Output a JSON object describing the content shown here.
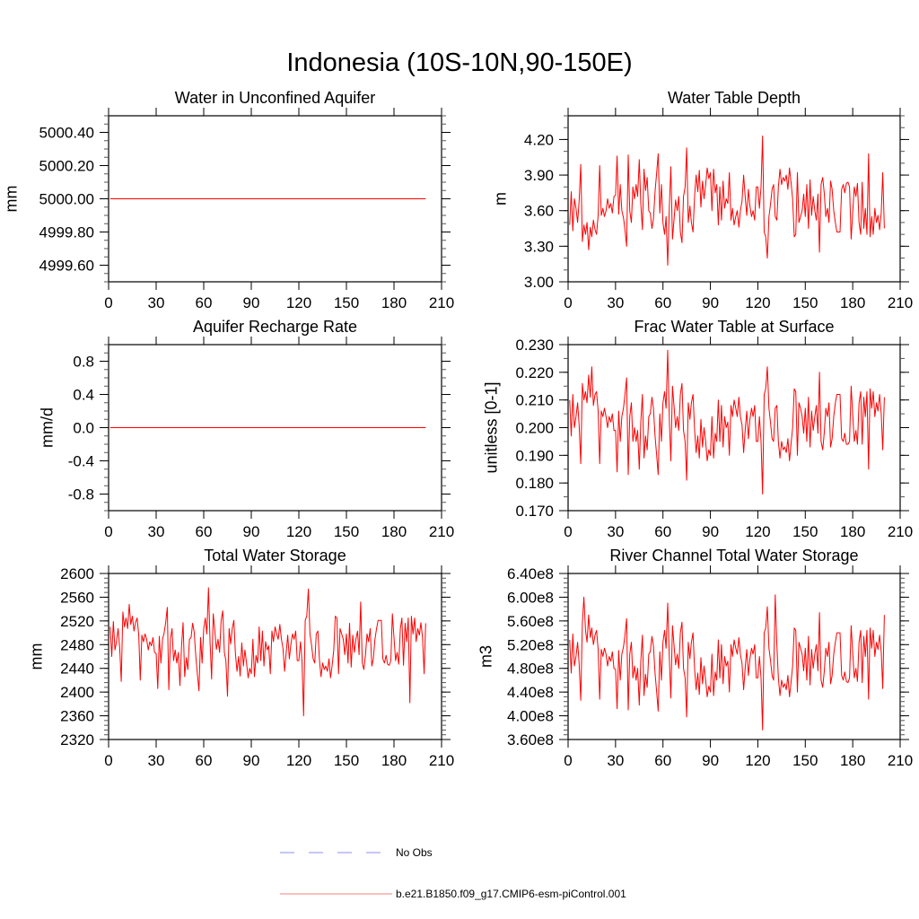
{
  "title": "Indonesia (10S-10N,90-150E)",
  "colors": {
    "series": "#ff0000",
    "frame": "#000000",
    "legend_obs": "#8c8cf0",
    "legend_model": "#f08080"
  },
  "legend": {
    "items": [
      {
        "label": "No Obs",
        "style": "dashed"
      },
      {
        "label": "b.e21.B1850.f09_g17.CMIP6-esm-piControl.001",
        "style": "solid"
      }
    ]
  },
  "chart_data": [
    {
      "type": "line",
      "title": "Water in Unconfined Aquifer",
      "xlabel": "",
      "ylabel": "mm",
      "xlim": [
        0,
        210
      ],
      "xticks": [
        0,
        30,
        60,
        90,
        120,
        150,
        180,
        210
      ],
      "ylim": [
        4999.5,
        5000.5
      ],
      "yticks": [
        4999.6,
        4999.8,
        5000.0,
        5000.2,
        5000.4
      ],
      "ytick_decimals": 2,
      "yminor_step": 0.05,
      "x": [
        1,
        200
      ],
      "values": [
        5000,
        5000
      ],
      "scale": 1
    },
    {
      "type": "line",
      "title": "Water Table Depth",
      "xlabel": "",
      "ylabel": "m",
      "xlim": [
        0,
        210
      ],
      "xticks": [
        0,
        30,
        60,
        90,
        120,
        150,
        180,
        210
      ],
      "ylim": [
        3.0,
        4.4
      ],
      "yticks": [
        3.0,
        3.3,
        3.6,
        3.9,
        4.2
      ],
      "ytick_decimals": 2,
      "yminor_step": 0.1,
      "x_start": 1,
      "scale": 1,
      "values": [
        3.48,
        3.76,
        3.43,
        3.7,
        3.62,
        3.5,
        3.68,
        3.99,
        3.34,
        3.48,
        3.4,
        3.5,
        3.27,
        3.46,
        3.38,
        3.52,
        3.44,
        3.4,
        3.56,
        3.98,
        3.56,
        3.62,
        3.55,
        3.6,
        3.7,
        3.62,
        3.66,
        3.58,
        3.72,
        3.73,
        4.06,
        3.57,
        3.82,
        3.6,
        3.54,
        3.44,
        3.3,
        4.07,
        3.6,
        3.5,
        3.8,
        3.7,
        3.82,
        3.72,
        4.03,
        3.66,
        3.44,
        3.95,
        3.77,
        3.88,
        3.6,
        3.58,
        3.45,
        3.53,
        3.76,
        3.92,
        4.08,
        3.58,
        3.82,
        3.5,
        3.4,
        3.55,
        3.14,
        3.63,
        3.97,
        3.36,
        3.52,
        3.69,
        3.6,
        3.72,
        3.42,
        3.33,
        3.72,
        3.8,
        4.13,
        3.5,
        3.64,
        3.5,
        3.42,
        3.73,
        3.9,
        3.76,
        3.94,
        3.63,
        3.85,
        3.7,
        3.82,
        3.96,
        3.87,
        3.92,
        3.6,
        3.95,
        3.75,
        3.82,
        3.48,
        3.8,
        3.52,
        3.85,
        3.62,
        3.7,
        3.66,
        3.92,
        3.52,
        3.62,
        3.48,
        3.55,
        3.6,
        3.46,
        3.6,
        3.68,
        3.9,
        3.72,
        3.56,
        3.78,
        3.64,
        3.55,
        3.6,
        3.52,
        3.8,
        3.8,
        3.62,
        3.8,
        4.23,
        3.42,
        3.38,
        3.2,
        3.55,
        3.65,
        3.78,
        3.82,
        3.55,
        3.52,
        3.8,
        3.95,
        3.82,
        3.88,
        3.85,
        3.9,
        3.78,
        3.96,
        3.84,
        3.7,
        3.38,
        3.4,
        3.92,
        3.5,
        3.55,
        3.6,
        3.74,
        3.55,
        3.82,
        3.45,
        3.86,
        3.56,
        3.72,
        3.6,
        3.52,
        3.74,
        3.25,
        3.82,
        3.88,
        3.75,
        3.55,
        3.62,
        3.5,
        3.85,
        3.78,
        3.6,
        3.5,
        3.42,
        3.42,
        3.42,
        3.78,
        3.82,
        3.75,
        3.83,
        3.84,
        3.8,
        3.36,
        3.58,
        3.8,
        3.72,
        3.83,
        3.5,
        3.4,
        3.84,
        3.45,
        3.62,
        3.4,
        4.08,
        3.38,
        3.55,
        3.4,
        3.62,
        3.5,
        3.56,
        3.44,
        3.58,
        3.92,
        3.45
      ]
    },
    {
      "type": "line",
      "title": "Aquifer Recharge Rate",
      "xlabel": "",
      "ylabel": "mm/d",
      "xlim": [
        0,
        210
      ],
      "xticks": [
        0,
        30,
        60,
        90,
        120,
        150,
        180,
        210
      ],
      "ylim": [
        -1.0,
        1.0
      ],
      "yticks": [
        -0.8,
        -0.4,
        0.0,
        0.4,
        0.8
      ],
      "ytick_decimals": 1,
      "yminor_step": 0.1,
      "x": [
        1,
        200
      ],
      "values": [
        0,
        0
      ],
      "scale": 1
    },
    {
      "type": "line",
      "title": "Frac Water Table at Surface",
      "xlabel": "",
      "ylabel": "unitless [0-1]",
      "xlim": [
        0,
        210
      ],
      "xticks": [
        0,
        30,
        60,
        90,
        120,
        150,
        180,
        210
      ],
      "ylim": [
        0.17,
        0.23
      ],
      "yticks": [
        0.17,
        0.18,
        0.19,
        0.2,
        0.21,
        0.22,
        0.23
      ],
      "ytick_decimals": 3,
      "yminor_step": 0.005,
      "x_start": 1,
      "scale": 1,
      "values": [
        0.21,
        0.197,
        0.212,
        0.2,
        0.204,
        0.209,
        0.201,
        0.187,
        0.216,
        0.21,
        0.213,
        0.209,
        0.219,
        0.211,
        0.222,
        0.208,
        0.212,
        0.213,
        0.206,
        0.187,
        0.206,
        0.204,
        0.207,
        0.204,
        0.2,
        0.204,
        0.202,
        0.205,
        0.199,
        0.199,
        0.184,
        0.206,
        0.195,
        0.204,
        0.207,
        0.212,
        0.218,
        0.183,
        0.204,
        0.209,
        0.195,
        0.2,
        0.195,
        0.199,
        0.185,
        0.202,
        0.212,
        0.189,
        0.197,
        0.192,
        0.204,
        0.205,
        0.211,
        0.207,
        0.197,
        0.19,
        0.183,
        0.205,
        0.195,
        0.209,
        0.213,
        0.207,
        0.228,
        0.203,
        0.188,
        0.215,
        0.208,
        0.2,
        0.204,
        0.199,
        0.212,
        0.216,
        0.199,
        0.195,
        0.181,
        0.209,
        0.203,
        0.209,
        0.212,
        0.199,
        0.191,
        0.197,
        0.189,
        0.203,
        0.193,
        0.2,
        0.195,
        0.188,
        0.192,
        0.19,
        0.204,
        0.189,
        0.198,
        0.195,
        0.21,
        0.195,
        0.208,
        0.193,
        0.204,
        0.2,
        0.202,
        0.19,
        0.208,
        0.204,
        0.21,
        0.207,
        0.204,
        0.211,
        0.204,
        0.201,
        0.191,
        0.199,
        0.206,
        0.196,
        0.203,
        0.207,
        0.204,
        0.208,
        0.195,
        0.195,
        0.204,
        0.195,
        0.176,
        0.212,
        0.214,
        0.222,
        0.207,
        0.202,
        0.196,
        0.195,
        0.207,
        0.208,
        0.195,
        0.189,
        0.195,
        0.192,
        0.193,
        0.191,
        0.196,
        0.188,
        0.194,
        0.2,
        0.214,
        0.213,
        0.19,
        0.209,
        0.207,
        0.204,
        0.198,
        0.207,
        0.195,
        0.211,
        0.193,
        0.206,
        0.199,
        0.204,
        0.208,
        0.198,
        0.22,
        0.195,
        0.192,
        0.198,
        0.207,
        0.204,
        0.209,
        0.193,
        0.196,
        0.204,
        0.209,
        0.212,
        0.212,
        0.212,
        0.196,
        0.195,
        0.198,
        0.194,
        0.194,
        0.195,
        0.215,
        0.205,
        0.195,
        0.199,
        0.194,
        0.209,
        0.213,
        0.194,
        0.211,
        0.204,
        0.213,
        0.185,
        0.214,
        0.207,
        0.213,
        0.204,
        0.209,
        0.206,
        0.212,
        0.205,
        0.192,
        0.211
      ]
    },
    {
      "type": "line",
      "title": "Total Water Storage",
      "xlabel": "",
      "ylabel": "mm",
      "xlim": [
        0,
        210
      ],
      "xticks": [
        0,
        30,
        60,
        90,
        120,
        150,
        180,
        210
      ],
      "ylim": [
        2320,
        2600
      ],
      "yticks": [
        2320,
        2360,
        2400,
        2440,
        2480,
        2520,
        2560,
        2600
      ],
      "ytick_decimals": 0,
      "yminor_step": 8,
      "x_start": 1,
      "scale": 1,
      "values": [
        2510,
        2460,
        2519,
        2471,
        2485,
        2507,
        2474,
        2418,
        2535,
        2510,
        2525,
        2507,
        2548,
        2514,
        2528,
        2503,
        2517,
        2525,
        2496,
        2420,
        2496,
        2485,
        2498,
        2489,
        2471,
        2485,
        2478,
        2492,
        2467,
        2465,
        2406,
        2494,
        2449,
        2489,
        2499,
        2517,
        2543,
        2404,
        2489,
        2507,
        2453,
        2471,
        2449,
        2467,
        2411,
        2478,
        2517,
        2426,
        2458,
        2438,
        2489,
        2492,
        2516,
        2501,
        2460,
        2431,
        2402,
        2492,
        2449,
        2507,
        2525,
        2498,
        2576,
        2483,
        2422,
        2532,
        2503,
        2472,
        2489,
        2467,
        2521,
        2537,
        2467,
        2453,
        2393,
        2507,
        2481,
        2507,
        2521,
        2465,
        2435,
        2460,
        2427,
        2483,
        2444,
        2471,
        2449,
        2424,
        2440,
        2431,
        2489,
        2426,
        2462,
        2449,
        2510,
        2453,
        2503,
        2444,
        2485,
        2471,
        2478,
        2431,
        2503,
        2485,
        2510,
        2498,
        2489,
        2514,
        2489,
        2474,
        2435,
        2467,
        2496,
        2456,
        2481,
        2498,
        2489,
        2503,
        2453,
        2453,
        2485,
        2453,
        2360,
        2521,
        2528,
        2574,
        2498,
        2480,
        2456,
        2449,
        2498,
        2503,
        2453,
        2426,
        2449,
        2438,
        2444,
        2435,
        2456,
        2424,
        2445,
        2471,
        2528,
        2525,
        2431,
        2507,
        2498,
        2489,
        2463,
        2498,
        2449,
        2516,
        2442,
        2496,
        2467,
        2489,
        2503,
        2463,
        2552,
        2449,
        2438,
        2462,
        2498,
        2485,
        2507,
        2444,
        2456,
        2489,
        2507,
        2521,
        2521,
        2521,
        2456,
        2449,
        2462,
        2447,
        2445,
        2453,
        2532,
        2492,
        2453,
        2467,
        2447,
        2507,
        2525,
        2445,
        2516,
        2485,
        2525,
        2382,
        2528,
        2498,
        2525,
        2485,
        2507,
        2496,
        2517,
        2492,
        2431,
        2516
      ]
    },
    {
      "type": "line",
      "title": "River Channel Total Water Storage",
      "xlabel": "",
      "ylabel": "m3",
      "xlim": [
        0,
        210
      ],
      "xticks": [
        0,
        30,
        60,
        90,
        120,
        150,
        180,
        210
      ],
      "ylim": [
        360000000.0,
        640000000.0
      ],
      "yticks": [
        360000000.0,
        400000000.0,
        440000000.0,
        480000000.0,
        520000000.0,
        560000000.0,
        600000000.0,
        640000000.0
      ],
      "ytick_format": "e8",
      "yminor_step": 8000000.0,
      "x_start": 1,
      "scale": 100000000.0,
      "values": [
        5.28,
        4.72,
        5.38,
        4.84,
        5.0,
        5.24,
        4.88,
        4.26,
        5.56,
        6.0,
        5.44,
        5.24,
        5.7,
        5.32,
        5.48,
        5.2,
        5.36,
        5.44,
        5.12,
        4.28,
        5.12,
        5.0,
        5.14,
        5.04,
        4.84,
        5.0,
        4.92,
        5.08,
        4.8,
        4.78,
        4.12,
        5.1,
        4.6,
        5.04,
        5.16,
        5.36,
        5.64,
        4.1,
        5.04,
        5.24,
        4.64,
        4.84,
        4.6,
        4.8,
        4.18,
        4.92,
        5.36,
        4.34,
        4.7,
        4.48,
        5.04,
        5.08,
        5.34,
        5.18,
        4.72,
        4.4,
        4.08,
        5.08,
        4.6,
        5.24,
        5.44,
        5.14,
        5.9,
        4.98,
        4.3,
        5.52,
        5.2,
        4.86,
        5.04,
        4.8,
        5.4,
        5.58,
        4.8,
        4.64,
        3.98,
        5.24,
        4.96,
        5.24,
        5.4,
        4.78,
        4.44,
        4.72,
        4.36,
        4.98,
        4.54,
        4.84,
        4.6,
        4.32,
        4.5,
        4.4,
        5.04,
        4.34,
        4.74,
        4.6,
        5.28,
        4.64,
        5.2,
        4.54,
        5.0,
        4.84,
        4.92,
        4.4,
        5.2,
        5.0,
        5.28,
        5.14,
        5.04,
        5.32,
        5.04,
        4.88,
        4.44,
        4.8,
        5.12,
        4.68,
        4.96,
        5.14,
        5.04,
        5.2,
        4.64,
        4.64,
        5.0,
        4.64,
        3.76,
        5.4,
        5.48,
        5.84,
        5.14,
        4.94,
        4.68,
        4.6,
        6.04,
        5.2,
        4.64,
        4.34,
        4.6,
        4.48,
        4.54,
        4.44,
        4.68,
        4.32,
        4.56,
        4.84,
        5.48,
        5.44,
        4.4,
        5.24,
        5.14,
        5.04,
        4.76,
        5.14,
        4.6,
        5.34,
        4.52,
        5.12,
        4.8,
        5.04,
        5.2,
        4.76,
        5.74,
        4.6,
        4.48,
        4.74,
        5.14,
        5.0,
        5.24,
        4.54,
        4.68,
        5.04,
        5.24,
        5.4,
        5.4,
        5.4,
        4.68,
        4.6,
        4.74,
        4.58,
        4.56,
        4.64,
        5.52,
        5.08,
        4.64,
        4.8,
        4.58,
        5.24,
        5.44,
        4.56,
        5.34,
        5.0,
        5.44,
        4.28,
        5.48,
        5.14,
        5.44,
        5.0,
        5.24,
        5.12,
        5.36,
        5.08,
        4.46,
        5.7
      ]
    }
  ]
}
